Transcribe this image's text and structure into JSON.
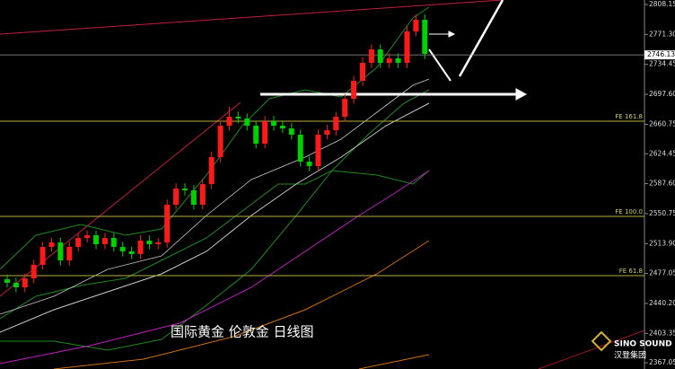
{
  "chart_data": {
    "type": "candlestick",
    "title": "国际黄金 伦敦金 日线图",
    "open": [
      2470,
      2465.6,
      2460,
      2471,
      2487.7,
      2509.8,
      2515.3,
      2493.2,
      2509.8,
      2520.8,
      2524.1,
      2513.1,
      2520.8,
      2509.8,
      2504.3,
      2501,
      2517.5,
      2513.1,
      2515.3,
      2561.7,
      2581.6,
      2579.4,
      2561.7,
      2587.1,
      2620.3,
      2659,
      2670,
      2667.8,
      2659,
      2636.9,
      2664.5,
      2659,
      2655.6,
      2647.9,
      2614.8,
      2609.2,
      2647.9,
      2653.4,
      2670,
      2692.1,
      2714.2,
      2736.3,
      2752.9,
      2736.3,
      2741.8,
      2736.3,
      2775,
      2789.4
    ],
    "high": [
      2476,
      2472,
      2477,
      2494,
      2516,
      2521,
      2521,
      2516,
      2527,
      2530,
      2530,
      2527,
      2527,
      2516,
      2510,
      2524,
      2524,
      2521,
      2568,
      2588,
      2588,
      2586,
      2593,
      2627,
      2665,
      2682,
      2676,
      2674,
      2665,
      2671,
      2671,
      2665,
      2662,
      2654,
      2621,
      2654,
      2660,
      2676,
      2698,
      2720,
      2743,
      2759,
      2759,
      2748,
      2748,
      2781,
      2796,
      2796
    ],
    "low": [
      2459.6,
      2454,
      2454,
      2465,
      2482,
      2504,
      2487,
      2487,
      2504,
      2515,
      2507,
      2507,
      2504,
      2498,
      2495,
      2495,
      2507,
      2507,
      2509,
      2556,
      2573,
      2556,
      2556,
      2581,
      2614,
      2653,
      2662,
      2653,
      2631,
      2631,
      2653,
      2650,
      2642,
      2609,
      2603,
      2603,
      2642,
      2647,
      2664,
      2686,
      2708,
      2730,
      2730,
      2730,
      2730,
      2730,
      2769,
      2741
    ],
    "close": [
      2465.6,
      2460,
      2471,
      2487.7,
      2509.8,
      2515.3,
      2493.2,
      2509.8,
      2520.8,
      2524.1,
      2513.1,
      2520.8,
      2509.8,
      2504.3,
      2501,
      2517.5,
      2513.1,
      2515.3,
      2561.7,
      2581.6,
      2579.4,
      2561.7,
      2587.1,
      2620.3,
      2659,
      2670,
      2667.8,
      2659,
      2636.9,
      2664.5,
      2659,
      2655.6,
      2647.9,
      2614.8,
      2609.2,
      2647.9,
      2653.4,
      2670,
      2692.1,
      2714.2,
      2736.3,
      2752.9,
      2736.3,
      2741.8,
      2736.3,
      2775,
      2789.4,
      2747.4
    ],
    "up_color": "#ff1a1a",
    "down_color": "#00d000",
    "ylim": [
      2359.5,
      2813.7
    ],
    "yticks": [
      2808.15,
      {
        "value": 2771.3,
        "label": "2771.30"
      },
      2734.45,
      {
        "value": 2697.6,
        "label": "2697.60"
      },
      2660.75,
      2624.45,
      {
        "value": 2587.6,
        "label": "2587.60"
      },
      2550.75,
      {
        "value": 2513.9,
        "label": "2513.90"
      },
      2477.05,
      {
        "value": 2440.2,
        "label": "2440.20"
      },
      2403.35,
      2367.05
    ],
    "current_price": 2746.13,
    "fib_levels": [
      {
        "name": "FE 161.8",
        "value": 2664.5
      },
      {
        "name": "FE 100.0",
        "value": 2547.3
      },
      {
        "name": "FE 61.8",
        "value": 2474.4
      }
    ]
  },
  "brand": {
    "name": "SINO SOUND",
    "name_cn": "汉登集团"
  }
}
